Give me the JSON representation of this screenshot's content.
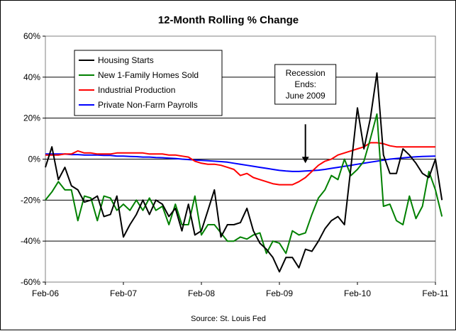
{
  "chart_data": {
    "type": "line",
    "title": "12-Month Rolling % Change",
    "source": "Source: St. Louis Fed",
    "xlabel": "",
    "ylabel": "",
    "ylim": [
      -60,
      60
    ],
    "y_ticks": [
      "60%",
      "40%",
      "20%",
      "0%",
      "-20%",
      "-40%",
      "-60%"
    ],
    "y_tick_values": [
      60,
      40,
      20,
      0,
      -20,
      -40,
      -60
    ],
    "x_ticks": [
      "Feb-06",
      "Feb-07",
      "Feb-08",
      "Feb-09",
      "Feb-10",
      "Feb-11"
    ],
    "x_tick_months": [
      0,
      12,
      24,
      36,
      48,
      60
    ],
    "grid": "horizontal",
    "legend_position": "top-left",
    "annotation": {
      "lines": [
        "Recession",
        "Ends:",
        "June 2009"
      ],
      "month": 40,
      "arrow_tip_value": -2,
      "arrow_tail_value": 17
    },
    "series": [
      {
        "name": "Housing Starts",
        "color": "#000000",
        "values": [
          -4,
          6,
          -10,
          -4,
          -13,
          -15,
          -21,
          -20,
          -18,
          -28,
          -27,
          -18,
          -38,
          -32,
          -27,
          -20,
          -27,
          -20,
          -22,
          -28,
          -24,
          -35,
          -22,
          -37,
          -35,
          -25,
          -15,
          -38,
          -32,
          -32,
          -31,
          -24,
          -35,
          -41,
          -44,
          -48,
          -55,
          -48,
          -48,
          -53,
          -44,
          -45,
          -40,
          -34,
          -30,
          -28,
          -32,
          -4,
          25,
          5,
          20,
          42,
          2,
          -7,
          -7,
          5,
          2,
          -2,
          -7,
          -9,
          0,
          -20
        ]
      },
      {
        "name": "New 1-Family Homes Sold",
        "color": "#008000",
        "values": [
          -20,
          -16,
          -11,
          -15,
          -15,
          -30,
          -18,
          -19,
          -30,
          -18,
          -19,
          -25,
          -22,
          -25,
          -20,
          -25,
          -19,
          -25,
          -23,
          -32,
          -22,
          -32,
          -32,
          -18,
          -37,
          -32,
          -32,
          -36,
          -40,
          -40,
          -38,
          -39,
          -37,
          -36,
          -46,
          -40,
          -41,
          -46,
          -35,
          -37,
          -36,
          -27,
          -19,
          -15,
          -8,
          -10,
          0,
          -8,
          -5,
          -1,
          10,
          22,
          -23,
          -22,
          -30,
          -32,
          -18,
          -29,
          -23,
          -6,
          -15,
          -28
        ]
      },
      {
        "name": "Industrial Production",
        "color": "#ff0000",
        "values": [
          2,
          2,
          2,
          2.5,
          2.5,
          4,
          3,
          3,
          2.5,
          2.5,
          2.5,
          3,
          3,
          3,
          3,
          3,
          2.5,
          2.5,
          2.5,
          2,
          2,
          1.5,
          1,
          -1,
          -2,
          -2.5,
          -2.5,
          -3,
          -4,
          -5,
          -8,
          -7,
          -9,
          -10,
          -11,
          -12,
          -12.5,
          -12.5,
          -12.5,
          -11,
          -9,
          -6,
          -3,
          -1,
          0,
          2,
          3,
          4,
          5,
          6,
          8,
          8,
          7.5,
          6.5,
          6,
          6,
          6,
          6,
          6,
          6,
          6
        ]
      },
      {
        "name": "Private Non-Farm Payrolls",
        "color": "#0000ff",
        "values": [
          2.5,
          2.5,
          2.5,
          2.5,
          2.2,
          2.2,
          2,
          2,
          2,
          1.8,
          1.8,
          1.5,
          1.5,
          1.3,
          1.2,
          1,
          1,
          0.8,
          0.7,
          0.5,
          0.3,
          0,
          -0.2,
          -0.4,
          -0.6,
          -0.8,
          -1,
          -1.2,
          -1.5,
          -2,
          -2.5,
          -3,
          -3.5,
          -4,
          -4.5,
          -5,
          -5.5,
          -5.8,
          -6,
          -6,
          -5.8,
          -5.6,
          -5.4,
          -5,
          -4.5,
          -4,
          -3.5,
          -3,
          -2.5,
          -2,
          -1.5,
          -1,
          -0.5,
          0,
          0.3,
          0.6,
          0.9,
          1.1,
          1.3,
          1.4,
          1.5
        ]
      }
    ]
  }
}
